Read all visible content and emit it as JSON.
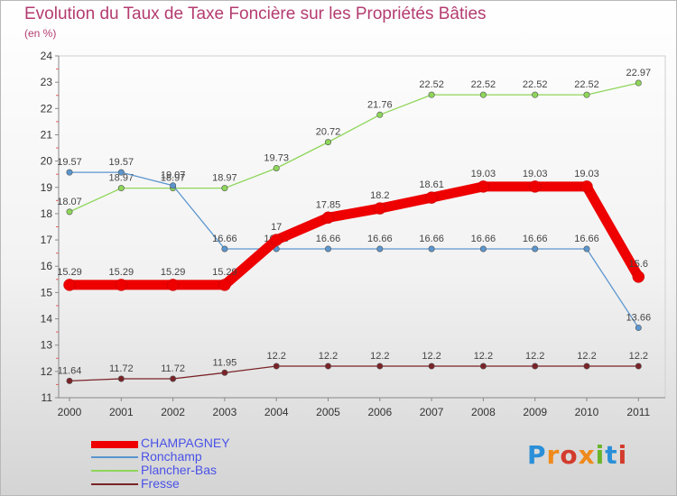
{
  "header": {
    "title": "Evolution du Taux de Taxe Foncière sur les Propriétés Bâties",
    "subtitle": "(en %)"
  },
  "logo": {
    "text": "Proxiti"
  },
  "chart_data": {
    "type": "line",
    "title": "Evolution du Taux de Taxe Foncière sur les Propriétés Bâties",
    "ylabel": "(en %)",
    "xlabel": "",
    "x": [
      "2000",
      "2001",
      "2002",
      "2003",
      "2004",
      "2005",
      "2006",
      "2007",
      "2008",
      "2009",
      "2010",
      "2011"
    ],
    "ylim": [
      11,
      24
    ],
    "yticks": [
      "11",
      "12",
      "13",
      "14",
      "15",
      "16",
      "17",
      "18",
      "19",
      "20",
      "21",
      "22",
      "23",
      "24"
    ],
    "grid": false,
    "legend_position": "bottom-left",
    "series": [
      {
        "name": "CHAMPAGNEY",
        "color": "#ee0000",
        "values": [
          15.29,
          15.29,
          15.29,
          15.29,
          17,
          17.85,
          18.2,
          18.61,
          19.03,
          19.03,
          19.03,
          15.6
        ],
        "labels": [
          "15.29",
          "15.29",
          "15.29",
          "15.29",
          "17",
          "17.85",
          "18.2",
          "18.61",
          "19.03",
          "19.03",
          "19.03",
          "15.6"
        ]
      },
      {
        "name": "Ronchamp",
        "color": "#5b96cf",
        "values": [
          19.57,
          19.57,
          19.07,
          16.66,
          16.66,
          16.66,
          16.66,
          16.66,
          16.66,
          16.66,
          16.66,
          13.66
        ],
        "labels": [
          "19.57",
          "19.57",
          "19.07",
          "16.66",
          "16.66",
          "16.66",
          "16.66",
          "16.66",
          "16.66",
          "16.66",
          "16.66",
          "13.66"
        ]
      },
      {
        "name": "Plancher-Bas",
        "color": "#8ed65a",
        "values": [
          18.07,
          18.97,
          18.97,
          18.97,
          19.73,
          20.72,
          21.76,
          22.52,
          22.52,
          22.52,
          22.52,
          22.97
        ],
        "labels": [
          "18.07",
          "18.97",
          "18.97",
          "18.97",
          "19.73",
          "20.72",
          "21.76",
          "22.52",
          "22.52",
          "22.52",
          "22.52",
          "22.97"
        ]
      },
      {
        "name": "Fresse",
        "color": "#7a2328",
        "values": [
          11.64,
          11.72,
          11.72,
          11.95,
          12.2,
          12.2,
          12.2,
          12.2,
          12.2,
          12.2,
          12.2,
          12.2
        ],
        "labels": [
          "11.64",
          "11.72",
          "11.72",
          "11.95",
          "12.2",
          "12.2",
          "12.2",
          "12.2",
          "12.2",
          "12.2",
          "12.2",
          "12.2"
        ]
      }
    ]
  }
}
